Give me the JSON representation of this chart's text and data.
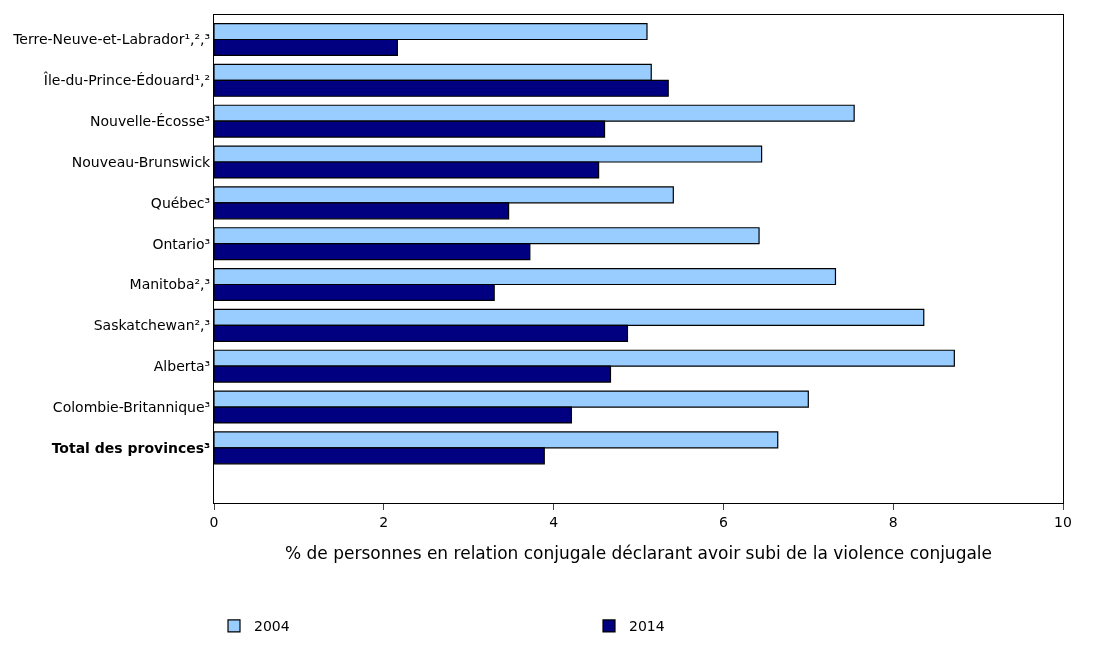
{
  "chart_data": {
    "type": "bar",
    "orientation": "horizontal",
    "categories": [
      "Terre-Neuve-et-Labrador¹,²,³",
      "Île-du-Prince-Édouard¹,²",
      "Nouvelle-Écosse³",
      "Nouveau-Brunswick",
      "Québec³",
      "Ontario³",
      "Manitoba²,³",
      "Saskatchewan²,³",
      "Alberta³",
      "Colombie-Britannique³",
      "Total des provinces³"
    ],
    "series": [
      {
        "name": "2004",
        "color": "#99ccff",
        "values": [
          5.1,
          5.15,
          7.54,
          6.45,
          5.41,
          6.42,
          7.32,
          8.36,
          8.72,
          7.0,
          6.64
        ]
      },
      {
        "name": "2014",
        "color": "#000080",
        "values": [
          2.16,
          5.35,
          4.6,
          4.53,
          3.47,
          3.72,
          3.3,
          4.87,
          4.67,
          4.21,
          3.89
        ]
      }
    ],
    "xlabel": "% de personnes en relation conjugale déclarant avoir subi de la violence conjugale",
    "xlim": [
      0,
      10
    ],
    "xticks": [
      0,
      2,
      4,
      6,
      8,
      10
    ],
    "legend": "bottom"
  }
}
